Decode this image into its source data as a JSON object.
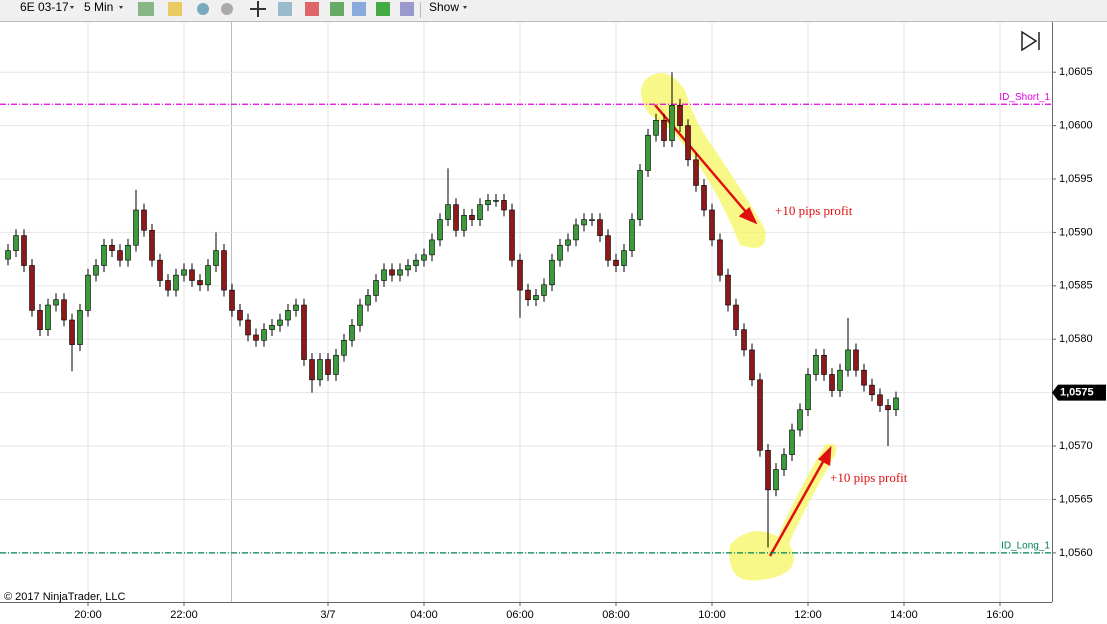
{
  "toolbar": {
    "instrument": "6E 03-17",
    "interval": "5 Min",
    "show": "Show"
  },
  "chart_data": {
    "type": "candlestick",
    "copyright": "© 2017 NinjaTrader, LLC",
    "categories": [
      null,
      null,
      null,
      null,
      null,
      null,
      null,
      null,
      null,
      null,
      "20:00",
      null,
      null,
      null,
      null,
      null,
      null,
      null,
      null,
      null,
      null,
      null,
      "22:00",
      null,
      null,
      null,
      null,
      null,
      null,
      null,
      null,
      null,
      null,
      null,
      null,
      null,
      null,
      null,
      null,
      null,
      "3/7",
      null,
      null,
      null,
      null,
      null,
      null,
      null,
      null,
      null,
      null,
      null,
      "04:00",
      null,
      null,
      null,
      null,
      null,
      null,
      null,
      null,
      null,
      null,
      null,
      "06:00",
      null,
      null,
      null,
      null,
      null,
      null,
      null,
      null,
      null,
      null,
      null,
      "08:00",
      null,
      null,
      null,
      null,
      null,
      null,
      null,
      null,
      null,
      null,
      null,
      "10:00",
      null,
      null,
      null,
      null,
      null,
      null,
      null,
      null,
      null,
      null,
      null,
      "12:00",
      null,
      null,
      null,
      null,
      null,
      null,
      null,
      null,
      null,
      null,
      null,
      "14:00",
      null,
      null,
      null,
      null,
      null,
      null,
      null,
      null,
      null,
      null,
      null,
      "16:00",
      null,
      null,
      null,
      null,
      null,
      null
    ],
    "open": [
      1.05875,
      1.05883,
      1.05897,
      1.05869,
      1.05827,
      1.05809,
      1.05832,
      1.05837,
      1.05818,
      1.05795,
      1.05827,
      1.0586,
      1.05869,
      1.05888,
      1.05883,
      1.05874,
      1.05888,
      1.05921,
      1.05902,
      1.05874,
      1.05855,
      1.05846,
      1.0586,
      1.05865,
      1.05855,
      1.05851,
      1.05869,
      1.05883,
      1.05846,
      1.05827,
      1.05818,
      1.05804,
      1.05799,
      1.05809,
      1.05813,
      1.05818,
      1.05827,
      1.05832,
      1.05781,
      1.05762,
      1.05781,
      1.05767,
      1.05785,
      1.05799,
      1.05813,
      1.05832,
      1.05841,
      1.05855,
      1.05865,
      1.0586,
      1.05865,
      1.05869,
      1.05874,
      1.05879,
      1.05893,
      1.05912,
      1.05926,
      1.05902,
      1.05916,
      1.05912,
      1.05926,
      1.0593,
      1.0593,
      1.05921,
      1.05874,
      1.05846,
      1.05837,
      1.05841,
      1.05851,
      1.05874,
      1.05888,
      1.05893,
      1.05907,
      1.05912,
      1.05912,
      1.05897,
      1.05874,
      1.05869,
      1.05883,
      1.05912,
      1.05958,
      1.05991,
      1.06005,
      1.05986,
      1.06019,
      1.06,
      1.05968,
      1.05944,
      1.05921,
      1.05893,
      1.0586,
      1.05832,
      1.05809,
      1.0579,
      1.05762,
      1.05696,
      1.05659,
      1.05678,
      1.05692,
      1.05715,
      1.05734,
      1.05767,
      1.05785,
      1.05767,
      1.05752,
      1.05771,
      1.0579,
      1.05771,
      1.05757,
      1.05748,
      1.05738,
      1.05734,
      null,
      null,
      null,
      null,
      null,
      null,
      null,
      null,
      null,
      null,
      null,
      null,
      null,
      null,
      null,
      null,
      null,
      null,
      null
    ],
    "high": [
      1.05889,
      1.05903,
      1.05903,
      1.05875,
      1.05833,
      1.05838,
      1.05843,
      1.05843,
      1.05824,
      1.05833,
      1.05866,
      1.05875,
      1.05894,
      1.05894,
      1.05889,
      1.05894,
      1.0594,
      1.05927,
      1.05908,
      1.0588,
      1.05861,
      1.05866,
      1.05871,
      1.05871,
      1.05861,
      1.05875,
      1.059,
      1.05889,
      1.05852,
      1.05833,
      1.05824,
      1.0581,
      1.05815,
      1.05819,
      1.05824,
      1.05833,
      1.05838,
      1.05838,
      1.05787,
      1.05787,
      1.05787,
      1.05791,
      1.05805,
      1.05819,
      1.05838,
      1.05847,
      1.05861,
      1.05871,
      1.05871,
      1.05871,
      1.05875,
      1.0588,
      1.05885,
      1.05899,
      1.05918,
      1.0596,
      1.05932,
      1.05922,
      1.05922,
      1.05932,
      1.05936,
      1.05936,
      1.05936,
      1.05927,
      1.0588,
      1.05852,
      1.05847,
      1.05857,
      1.0588,
      1.05894,
      1.05899,
      1.05913,
      1.05918,
      1.05918,
      1.05918,
      1.05903,
      1.0588,
      1.05889,
      1.05918,
      1.05964,
      1.05997,
      1.06011,
      1.06011,
      1.0605,
      1.06025,
      1.06006,
      1.05974,
      1.0595,
      1.05927,
      1.05899,
      1.05866,
      1.05838,
      1.05815,
      1.05796,
      1.05768,
      1.05702,
      1.05684,
      1.05698,
      1.05721,
      1.0574,
      1.05773,
      1.05791,
      1.05791,
      1.05773,
      1.05777,
      1.0582,
      1.05796,
      1.05777,
      1.05763,
      1.05754,
      1.05744,
      1.05751,
      null,
      null,
      null,
      null,
      null,
      null,
      null,
      null,
      null,
      null,
      null,
      null,
      null,
      null,
      null,
      null,
      null,
      null,
      null
    ],
    "low": [
      1.05869,
      1.05877,
      1.05863,
      1.05821,
      1.05803,
      1.05803,
      1.05826,
      1.05812,
      1.0577,
      1.05789,
      1.05821,
      1.05854,
      1.05863,
      1.05877,
      1.05868,
      1.05868,
      1.05882,
      1.05896,
      1.05868,
      1.05849,
      1.0584,
      1.0584,
      1.05854,
      1.05849,
      1.05845,
      1.05845,
      1.05863,
      1.0584,
      1.05821,
      1.05812,
      1.05798,
      1.05793,
      1.05793,
      1.05803,
      1.05807,
      1.05812,
      1.05821,
      1.05775,
      1.0575,
      1.05756,
      1.05761,
      1.05761,
      1.05779,
      1.05793,
      1.05807,
      1.05826,
      1.05835,
      1.05849,
      1.05854,
      1.05854,
      1.05859,
      1.05863,
      1.05868,
      1.05873,
      1.05887,
      1.05906,
      1.05896,
      1.05896,
      1.05906,
      1.05906,
      1.0592,
      1.05924,
      1.05915,
      1.05868,
      1.0582,
      1.05831,
      1.05831,
      1.05835,
      1.05845,
      1.05868,
      1.05882,
      1.05887,
      1.05901,
      1.05906,
      1.05891,
      1.05868,
      1.05863,
      1.05863,
      1.05877,
      1.05906,
      1.05952,
      1.05985,
      1.0598,
      1.0598,
      1.05994,
      1.05962,
      1.05938,
      1.05915,
      1.05887,
      1.05854,
      1.05826,
      1.05803,
      1.05784,
      1.05756,
      1.0569,
      1.05605,
      1.05653,
      1.05672,
      1.05686,
      1.05709,
      1.05728,
      1.05761,
      1.05761,
      1.05746,
      1.05746,
      1.05765,
      1.05765,
      1.05751,
      1.05742,
      1.05732,
      1.057,
      1.05728,
      null,
      null,
      null,
      null,
      null,
      null,
      null,
      null,
      null,
      null,
      null,
      null,
      null,
      null,
      null,
      null,
      null,
      null,
      null
    ],
    "close": [
      1.05883,
      1.05897,
      1.05869,
      1.05827,
      1.05809,
      1.05832,
      1.05837,
      1.05818,
      1.05795,
      1.05827,
      1.0586,
      1.05869,
      1.05888,
      1.05883,
      1.05874,
      1.05888,
      1.05921,
      1.05902,
      1.05874,
      1.05855,
      1.05846,
      1.0586,
      1.05865,
      1.05855,
      1.05851,
      1.05869,
      1.05883,
      1.05846,
      1.05827,
      1.05818,
      1.05804,
      1.05799,
      1.05809,
      1.05813,
      1.05818,
      1.05827,
      1.05832,
      1.05781,
      1.05762,
      1.05781,
      1.05767,
      1.05785,
      1.05799,
      1.05813,
      1.05832,
      1.05841,
      1.05855,
      1.05865,
      1.0586,
      1.05865,
      1.05869,
      1.05874,
      1.05879,
      1.05893,
      1.05912,
      1.05926,
      1.05902,
      1.05916,
      1.05912,
      1.05926,
      1.0593,
      1.0593,
      1.05921,
      1.05874,
      1.05846,
      1.05837,
      1.05841,
      1.05851,
      1.05874,
      1.05888,
      1.05893,
      1.05907,
      1.05912,
      1.05912,
      1.05897,
      1.05874,
      1.05869,
      1.05883,
      1.05912,
      1.05958,
      1.05991,
      1.06005,
      1.05986,
      1.06019,
      1.06,
      1.05968,
      1.05944,
      1.05921,
      1.05893,
      1.0586,
      1.05832,
      1.05809,
      1.0579,
      1.05762,
      1.05696,
      1.05659,
      1.05678,
      1.05692,
      1.05715,
      1.05734,
      1.05767,
      1.05785,
      1.05767,
      1.05752,
      1.05771,
      1.0579,
      1.05771,
      1.05757,
      1.05748,
      1.05738,
      1.05734,
      1.05745,
      null,
      null,
      null,
      null,
      null,
      null,
      null,
      null,
      null,
      null,
      null,
      null,
      null,
      null,
      null,
      null,
      null,
      null,
      null
    ],
    "up_color": "#3c9a3c",
    "down_color": "#8b1a1a",
    "ylim": [
      1.05554,
      1.06097
    ],
    "yticks": [
      {
        "value": 1.056,
        "label": "1,0560"
      },
      {
        "value": 1.0565,
        "label": "1,0565"
      },
      {
        "value": 1.057,
        "label": "1,0570"
      },
      {
        "value": 1.0575,
        "label": "1,0575"
      },
      {
        "value": 1.058,
        "label": "1,0580"
      },
      {
        "value": 1.0585,
        "label": "1,0585"
      },
      {
        "value": 1.059,
        "label": "1,0590"
      },
      {
        "value": 1.0595,
        "label": "1,0595"
      },
      {
        "value": 1.06,
        "label": "1,0600"
      },
      {
        "value": 1.0605,
        "label": "1,0605"
      }
    ],
    "grid": true,
    "last_price": {
      "value": 1.0575,
      "label": "1,0575"
    },
    "lines": [
      {
        "name": "ID_Short_1",
        "value": 1.0602,
        "color": "#e000e0"
      },
      {
        "name": "ID_Long_1",
        "value": 1.056,
        "color": "#00805a"
      }
    ],
    "annotations": [
      "+10 pips profit",
      "+10 pips profit"
    ]
  }
}
